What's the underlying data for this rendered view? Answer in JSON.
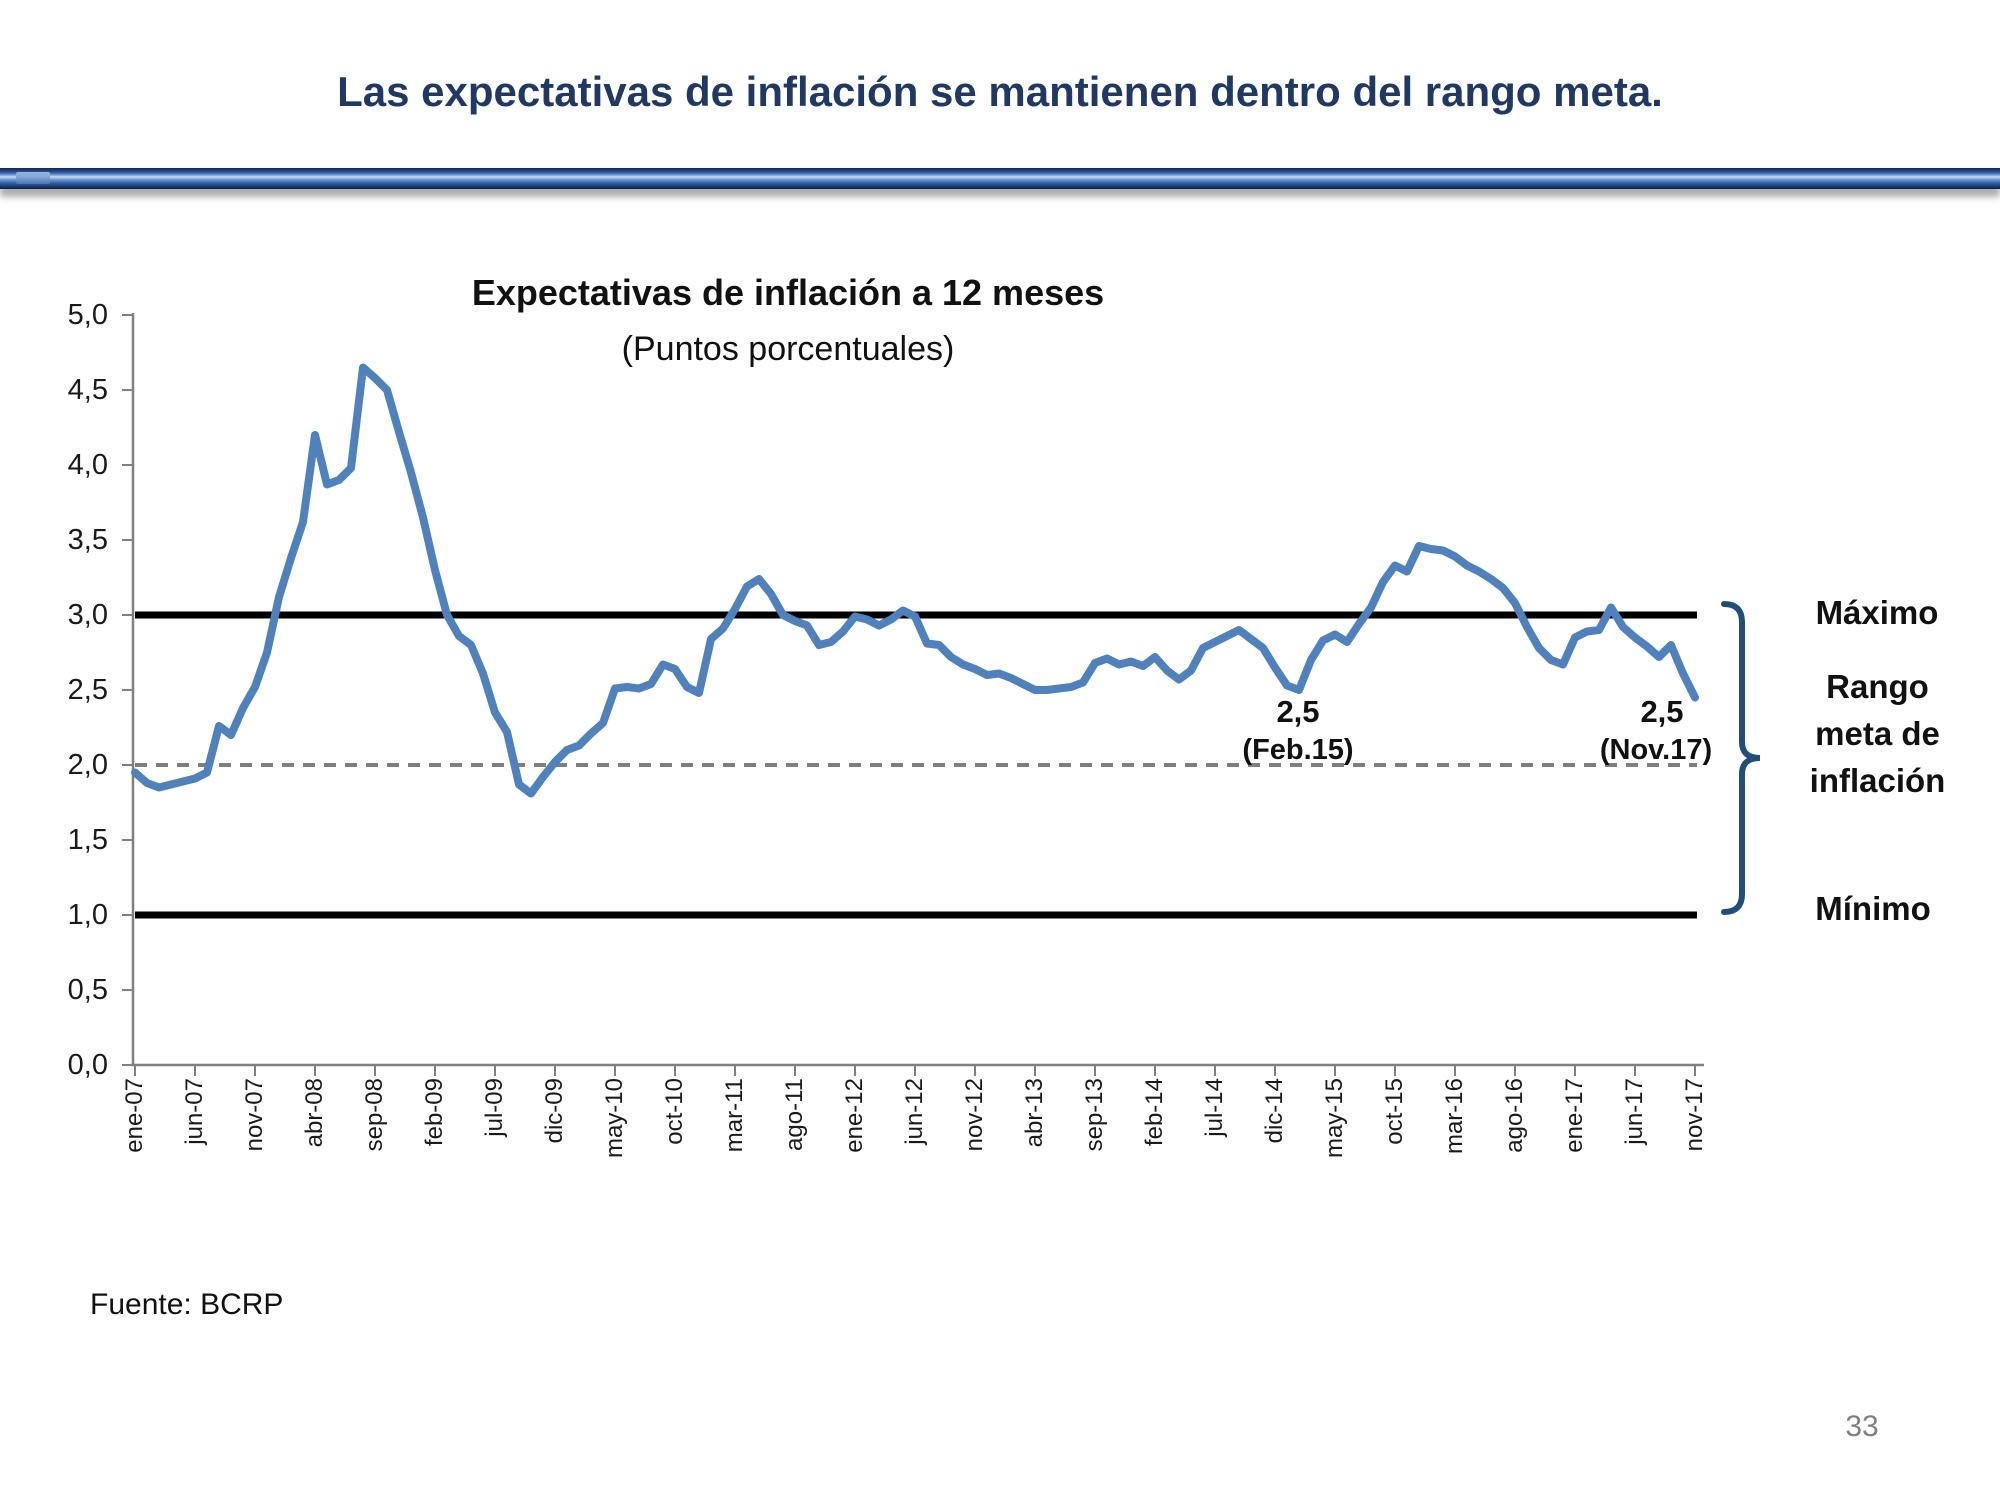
{
  "header": {
    "title": "Las expectativas de inflación se mantienen dentro del rango meta."
  },
  "chart_data": {
    "type": "line",
    "title": "Expectativas de inflación a 12 meses",
    "subtitle": "(Puntos porcentuales)",
    "ylim": [
      0.0,
      5.0
    ],
    "grid": "off",
    "y_tick_labels": [
      "5,0",
      "4,5",
      "4,0",
      "3,5",
      "3,0",
      "2,5",
      "2,0",
      "1,5",
      "1,0",
      "0,5",
      "0,0"
    ],
    "x_tick_labels": [
      "ene-07",
      "jun-07",
      "nov-07",
      "abr-08",
      "sep-08",
      "feb-09",
      "jul-09",
      "dic-09",
      "may-10",
      "oct-10",
      "mar-11",
      "ago-11",
      "ene-12",
      "jun-12",
      "nov-12",
      "abr-13",
      "sep-13",
      "feb-14",
      "jul-14",
      "dic-14",
      "may-15",
      "oct-15",
      "mar-16",
      "ago-16",
      "ene-17",
      "jun-17",
      "nov-17"
    ],
    "x_tick_interval_months": 5,
    "series": [
      {
        "name": "Expectativas de inflación a 12 meses",
        "color": "#4F81BD",
        "start": "ene-07",
        "end": "nov-17",
        "frequency": "monthly",
        "values": [
          1.95,
          1.88,
          1.85,
          1.87,
          1.89,
          1.91,
          1.95,
          2.26,
          2.2,
          2.38,
          2.52,
          2.75,
          3.12,
          3.38,
          3.62,
          4.2,
          3.87,
          3.9,
          3.98,
          4.65,
          4.58,
          4.5,
          4.22,
          3.95,
          3.65,
          3.3,
          3.0,
          2.86,
          2.8,
          2.61,
          2.35,
          2.22,
          1.87,
          1.81,
          1.92,
          2.02,
          2.1,
          2.13,
          2.21,
          2.28,
          2.51,
          2.52,
          2.51,
          2.54,
          2.67,
          2.64,
          2.52,
          2.48,
          2.84,
          2.91,
          3.04,
          3.19,
          3.24,
          3.14,
          3.0,
          2.96,
          2.93,
          2.8,
          2.82,
          2.89,
          2.99,
          2.97,
          2.93,
          2.97,
          3.03,
          2.99,
          2.81,
          2.8,
          2.72,
          2.67,
          2.64,
          2.6,
          2.61,
          2.58,
          2.54,
          2.5,
          2.5,
          2.51,
          2.52,
          2.55,
          2.68,
          2.71,
          2.67,
          2.69,
          2.66,
          2.72,
          2.63,
          2.57,
          2.63,
          2.78,
          2.82,
          2.86,
          2.9,
          2.84,
          2.78,
          2.65,
          2.53,
          2.5,
          2.7,
          2.83,
          2.87,
          2.82,
          2.94,
          3.05,
          3.22,
          3.33,
          3.29,
          3.46,
          3.44,
          3.43,
          3.39,
          3.33,
          3.29,
          3.24,
          3.18,
          3.08,
          2.92,
          2.78,
          2.7,
          2.67,
          2.85,
          2.89,
          2.9,
          3.05,
          2.92,
          2.85,
          2.79,
          2.72,
          2.8,
          2.61,
          2.45
        ]
      }
    ],
    "reference_lines": [
      {
        "label": "",
        "value": 2.0,
        "color": "#7F7F7F",
        "style": "dashed"
      },
      {
        "label": "Máximo",
        "value": 3.0,
        "color": "#000000",
        "style": "solid"
      },
      {
        "label": "Mínimo",
        "value": 1.0,
        "color": "#000000",
        "style": "solid"
      }
    ],
    "annotations": [
      {
        "value_label": "2,5",
        "date_label": "(Feb.15)",
        "month": "feb-15"
      },
      {
        "value_label": "2,5",
        "date_label": "(Nov.17)",
        "month": "nov-17"
      }
    ],
    "right_labels": {
      "maximo": "Máximo",
      "rango": "Rango meta de inflación",
      "minimo": "Mínimo"
    }
  },
  "footer": {
    "source": "Fuente: BCRP",
    "page_number": "33"
  },
  "colors": {
    "title": "#1F3864",
    "series": "#4F81BD",
    "axis": "#808080",
    "dashed_line": "#7F7F7F",
    "reference_black": "#000000",
    "bracket": "#1F4E79",
    "page_number": "#808080"
  }
}
